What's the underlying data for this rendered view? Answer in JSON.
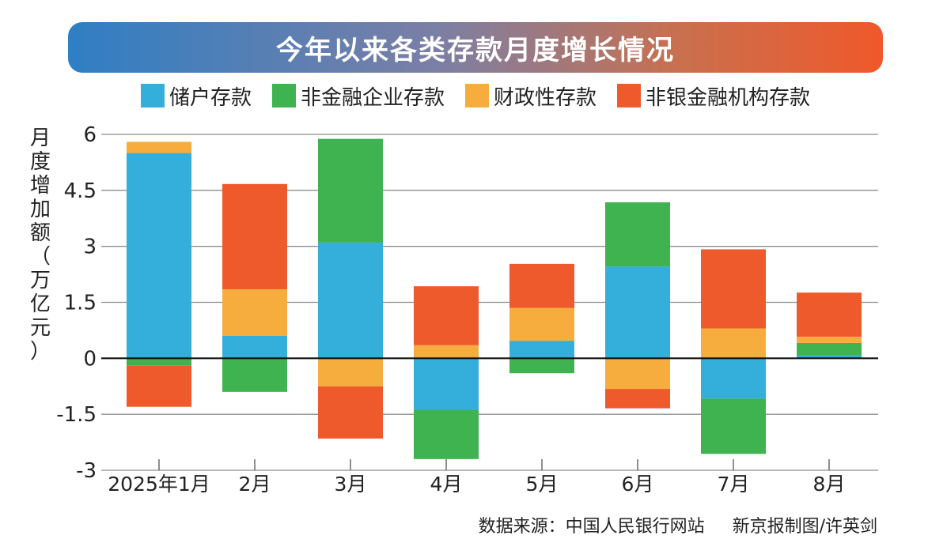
{
  "chart_data": {
    "type": "bar",
    "stacked": true,
    "title": "今年以来各类存款月度增长情况",
    "ylabel": "月度增加额（万亿元）",
    "ylabel_chars": [
      "月",
      "度",
      "增",
      "加",
      "额",
      "（",
      "万",
      "亿",
      "元",
      "）"
    ],
    "categories": [
      "2025年1月",
      "2月",
      "3月",
      "4月",
      "5月",
      "6月",
      "7月",
      "8月"
    ],
    "yticks": [
      "6",
      "4.5",
      "3",
      "1.5",
      "0",
      "-1.5",
      "-3"
    ],
    "ytick_values": [
      6,
      4.5,
      3,
      1.5,
      0,
      -1.5,
      -3
    ],
    "ylim": [
      -3,
      6
    ],
    "grid": true,
    "legend_position": "top",
    "series": [
      {
        "name": "储户存款",
        "color": "#34aedb",
        "values": [
          5.5,
          0.6,
          3.1,
          -1.38,
          0.47,
          2.46,
          -1.08,
          0.08
        ]
      },
      {
        "name": "非金融企业存款",
        "color": "#3fb34f",
        "values": [
          -0.2,
          -0.9,
          2.78,
          -1.32,
          -0.4,
          1.72,
          -1.48,
          0.33
        ]
      },
      {
        "name": "财政性存款",
        "color": "#f6ad3d",
        "values": [
          0.3,
          1.25,
          -0.75,
          0.35,
          0.88,
          -0.82,
          0.8,
          0.17
        ]
      },
      {
        "name": "非银金融机构存款",
        "color": "#ef5a2c",
        "values": [
          -1.1,
          2.82,
          -1.4,
          1.58,
          1.18,
          -0.52,
          2.12,
          1.18
        ]
      }
    ]
  },
  "source_text": "数据来源：中国人民银行网站     新京报制图/许英剑"
}
